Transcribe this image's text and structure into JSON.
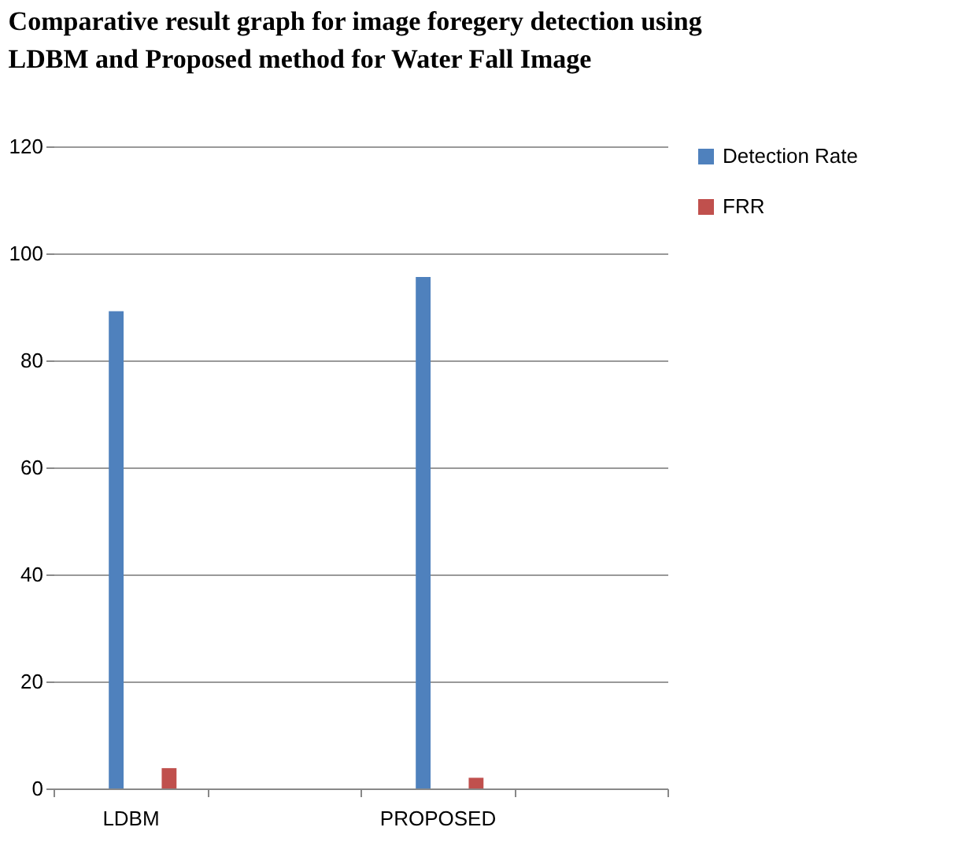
{
  "chart_data": {
    "type": "bar",
    "title": "Comparative result graph for image foregery detection using LDBM and Proposed method for Water Fall Image",
    "categories": [
      "LDBM",
      null,
      "PROPOSED",
      null
    ],
    "series": [
      {
        "name": "Detection Rate",
        "color": "#4f81bd",
        "values": [
          89.2,
          null,
          95.6,
          null
        ]
      },
      {
        "name": "FRR",
        "color": "#c0504d",
        "values": [
          3.8,
          null,
          2.0,
          null
        ]
      }
    ],
    "ylim": [
      0,
      120
    ],
    "yticks": [
      0,
      20,
      40,
      60,
      80,
      100,
      120
    ],
    "grid": "y",
    "legend": "right"
  }
}
